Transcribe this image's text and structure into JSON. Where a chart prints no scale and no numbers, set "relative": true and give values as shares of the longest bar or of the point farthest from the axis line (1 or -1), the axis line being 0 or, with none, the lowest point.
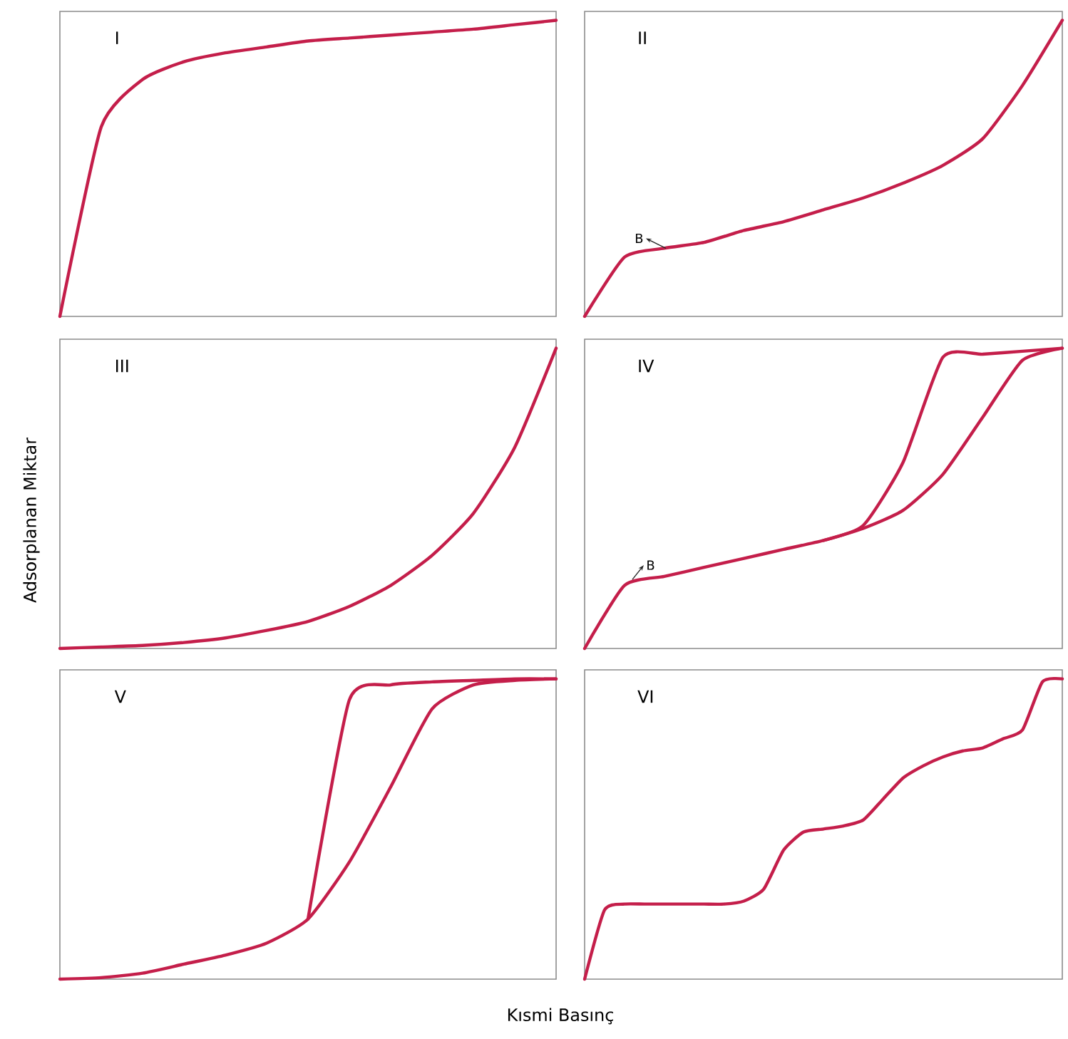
{
  "chart_data": [
    {
      "type": "line",
      "title": "I",
      "relative": true,
      "categories": [
        null,
        null,
        null,
        null,
        null,
        null,
        null,
        null,
        null,
        null,
        null,
        null,
        null
      ],
      "series": [
        {
          "color": "#c41e4a",
          "values": [
            0,
            0.64,
            0.8,
            0.86,
            0.89,
            0.91,
            0.93,
            0.94,
            0.95,
            0.96,
            0.97,
            0.985,
            1
          ]
        }
      ]
    },
    {
      "type": "line",
      "title": "II",
      "relative": true,
      "categories": [
        null,
        null,
        null,
        null,
        null,
        null,
        null,
        null,
        null,
        null,
        null,
        null,
        null
      ],
      "annotations": [
        {
          "text": "B",
          "y": 0.23
        }
      ],
      "series": [
        {
          "color": "#c41e4a",
          "values": [
            0,
            0.2,
            0.23,
            0.25,
            0.29,
            0.32,
            0.36,
            0.4,
            0.45,
            0.51,
            0.6,
            0.78,
            1
          ]
        }
      ]
    },
    {
      "type": "line",
      "title": "III",
      "relative": true,
      "ylabel": "Adsorplanan Miktar",
      "categories": [
        null,
        null,
        null,
        null,
        null,
        null,
        null,
        null,
        null,
        null,
        null,
        null,
        null
      ],
      "series": [
        {
          "color": "#c41e4a",
          "values": [
            0,
            0.005,
            0.01,
            0.02,
            0.035,
            0.06,
            0.09,
            0.14,
            0.21,
            0.31,
            0.45,
            0.67,
            1
          ]
        }
      ]
    },
    {
      "type": "line",
      "title": "IV",
      "relative": true,
      "categories": [
        null,
        null,
        null,
        null,
        null,
        null,
        null,
        null,
        null,
        null,
        null,
        null,
        null
      ],
      "annotations": [
        {
          "text": "B",
          "y": 0.23
        }
      ],
      "series": [
        {
          "color": "#c41e4a",
          "values": [
            0,
            0.21,
            0.24,
            0.27,
            0.3,
            0.33,
            0.36,
            0.4,
            0.46,
            0.58,
            0.77,
            0.96,
            1
          ]
        },
        {
          "color": "#c41e4a",
          "values": [
            null,
            null,
            null,
            null,
            null,
            null,
            0.36,
            0.41,
            0.62,
            0.97,
            0.98,
            0.99,
            1
          ]
        }
      ]
    },
    {
      "type": "line",
      "title": "V",
      "relative": true,
      "xlabel": "Kısmi Basınç",
      "categories": [
        null,
        null,
        null,
        null,
        null,
        null,
        null,
        null,
        null,
        null,
        null,
        null,
        null
      ],
      "series": [
        {
          "color": "#c41e4a",
          "values": [
            0,
            0.005,
            0.02,
            0.05,
            0.08,
            0.12,
            0.2,
            0.39,
            0.64,
            0.9,
            0.98,
            0.995,
            1
          ]
        },
        {
          "color": "#c41e4a",
          "values": [
            null,
            null,
            null,
            null,
            null,
            null,
            0.2,
            0.93,
            0.98,
            0.99,
            0.995,
            1,
            1
          ]
        }
      ]
    },
    {
      "type": "line",
      "title": "VI",
      "relative": true,
      "categories": [
        null,
        null,
        null,
        null,
        null,
        null,
        null,
        null,
        null,
        null,
        null,
        null,
        null,
        null,
        null,
        null,
        null,
        null,
        null,
        null,
        null,
        null,
        null,
        null,
        null
      ],
      "series": [
        {
          "color": "#c41e4a",
          "values": [
            0,
            0.23,
            0.25,
            0.25,
            0.25,
            0.25,
            0.25,
            0.25,
            0.26,
            0.3,
            0.43,
            0.49,
            0.5,
            0.51,
            0.53,
            0.6,
            0.67,
            0.71,
            0.74,
            0.76,
            0.77,
            0.8,
            0.83,
            0.99,
            1
          ]
        }
      ]
    }
  ]
}
